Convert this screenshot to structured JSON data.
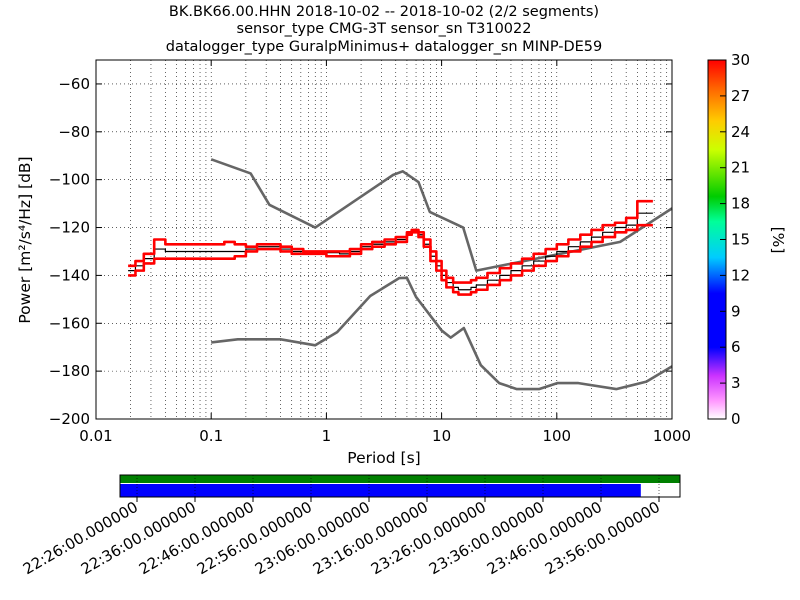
{
  "title_lines": [
    "BK.BK66.00.HHN   2018-10-02 -- 2018-10-02  (2/2 segments)",
    "sensor_type CMG-3T sensor_sn T310022",
    "datalogger_type GuralpMinimus+ datalogger_sn MINP-DE59"
  ],
  "colorbar": {
    "label": "[%]",
    "min": 0,
    "max": 30,
    "ticks": [
      0,
      3,
      6,
      9,
      12,
      15,
      18,
      21,
      24,
      27,
      30
    ],
    "tick_labels": [
      "0",
      "3",
      "6",
      "9",
      "12",
      "15",
      "18",
      "21",
      "24",
      "27",
      "30"
    ]
  },
  "timeline": {
    "tick_labels": [
      "22:26:00.000000",
      "22:36:00.000000",
      "22:46:00.000000",
      "22:56:00.000000",
      "23:06:00.000000",
      "23:16:00.000000",
      "23:26:00.000000",
      "23:36:00.000000",
      "23:46:00.000000",
      "23:56:00.000000"
    ],
    "colors": {
      "data": "#0000ff",
      "gaps": "#008000"
    },
    "data_coverage_fraction": 0.93
  },
  "chart_data": {
    "type": "line",
    "title": "BK.BK66.00.HHN   2018-10-02 -- 2018-10-02  (2/2 segments)",
    "xlabel": "Period [s]",
    "ylabel": "Power [m²/s⁴/Hz] [dB]",
    "xscale": "log",
    "xlim": [
      0.01,
      1000
    ],
    "ylim": [
      -200,
      -50
    ],
    "x_ticks": [
      0.01,
      0.1,
      1,
      10,
      100,
      1000
    ],
    "x_tick_labels": [
      "0.01",
      "0.1",
      "1",
      "10",
      "100",
      "1000"
    ],
    "y_ticks": [
      -200,
      -180,
      -160,
      -140,
      -120,
      -100,
      -80,
      -60
    ],
    "y_tick_labels": [
      "−200",
      "−180",
      "−160",
      "−140",
      "−120",
      "−100",
      "−80",
      "−60"
    ],
    "grid": true,
    "series": [
      {
        "role": "high-noise-model",
        "color": "#666666",
        "x": [
          0.1,
          0.22,
          0.32,
          0.8,
          3.8,
          4.6,
          6.3,
          7.9,
          15.4,
          20,
          354.8,
          1000
        ],
        "y": [
          -91.5,
          -97.4,
          -110.5,
          -120,
          -98,
          -96.5,
          -101,
          -113.5,
          -120,
          -138,
          -126,
          -112
        ]
      },
      {
        "role": "low-noise-model",
        "color": "#666666",
        "x": [
          0.1,
          0.17,
          0.4,
          0.8,
          1.24,
          2.4,
          4.3,
          5,
          6,
          10,
          12,
          15.6,
          21.9,
          31.6,
          45,
          70,
          101,
          154,
          328,
          600,
          1000
        ],
        "y": [
          -168,
          -166.7,
          -166.7,
          -169.2,
          -163.7,
          -148.6,
          -141.1,
          -141,
          -149,
          -163,
          -166,
          -162,
          -177.5,
          -185,
          -187.5,
          -187.5,
          -185,
          -185,
          -187.5,
          -184.4,
          -178
        ]
      },
      {
        "role": "mode",
        "color": "#000000",
        "x": [
          0.019,
          0.022,
          0.026,
          0.032,
          0.04,
          0.05,
          0.063,
          0.08,
          0.1,
          0.13,
          0.16,
          0.2,
          0.25,
          0.32,
          0.4,
          0.5,
          0.63,
          0.8,
          1,
          1.3,
          1.6,
          2,
          2.5,
          3.2,
          4,
          5,
          5.5,
          6.3,
          7,
          8,
          9,
          10,
          11,
          12.6,
          14,
          16,
          18,
          20,
          25,
          32,
          40,
          50,
          63,
          80,
          100,
          126,
          160,
          200,
          250,
          320,
          400,
          500,
          630
        ],
        "y": [
          -138,
          -136,
          -133,
          -129,
          -130,
          -130,
          -130,
          -130,
          -130,
          -130,
          -130,
          -129,
          -128,
          -128,
          -129,
          -130,
          -130,
          -130,
          -130.5,
          -131,
          -130,
          -128,
          -127,
          -126,
          -125,
          -122,
          -121.5,
          -123,
          -127,
          -132,
          -136,
          -140,
          -143,
          -145,
          -146,
          -146,
          -145,
          -144,
          -142,
          -140,
          -138,
          -136,
          -134,
          -132,
          -130,
          -128,
          -126,
          -124,
          -122,
          -120,
          -119,
          -114,
          -114
        ]
      },
      {
        "role": "percentile-upper",
        "color": "#ff0000",
        "x": [
          0.019,
          0.022,
          0.026,
          0.032,
          0.04,
          0.05,
          0.063,
          0.08,
          0.1,
          0.13,
          0.16,
          0.2,
          0.25,
          0.32,
          0.4,
          0.5,
          0.63,
          0.8,
          1,
          1.3,
          1.6,
          2,
          2.5,
          3.2,
          4,
          5,
          5.5,
          6.3,
          7,
          8,
          9,
          10,
          11,
          12.6,
          14,
          16,
          18,
          20,
          25,
          32,
          40,
          50,
          63,
          80,
          100,
          126,
          160,
          200,
          250,
          320,
          400,
          500,
          630
        ],
        "y": [
          -136,
          -134,
          -131,
          -125,
          -127,
          -127,
          -127,
          -127,
          -127,
          -126,
          -127,
          -128,
          -127,
          -127,
          -128,
          -129,
          -130,
          -130,
          -130,
          -130,
          -129,
          -127,
          -126,
          -125,
          -124,
          -122,
          -121,
          -122,
          -125,
          -130,
          -134,
          -138,
          -141,
          -143,
          -143,
          -143,
          -142,
          -141,
          -139,
          -137,
          -135,
          -133,
          -131,
          -129,
          -127,
          -125,
          -123,
          -121,
          -119,
          -118,
          -116,
          -109,
          -109
        ]
      },
      {
        "role": "percentile-lower",
        "color": "#ff0000",
        "x": [
          0.019,
          0.022,
          0.026,
          0.032,
          0.04,
          0.05,
          0.063,
          0.08,
          0.1,
          0.13,
          0.16,
          0.2,
          0.25,
          0.32,
          0.4,
          0.5,
          0.63,
          0.8,
          1,
          1.3,
          1.6,
          2,
          2.5,
          3.2,
          4,
          5,
          5.5,
          6.3,
          7,
          8,
          9,
          10,
          11,
          12.6,
          14,
          16,
          18,
          20,
          25,
          32,
          40,
          50,
          63,
          80,
          100,
          126,
          160,
          200,
          250,
          320,
          400,
          500,
          630
        ],
        "y": [
          -140,
          -138,
          -135,
          -133,
          -133,
          -133,
          -133,
          -133,
          -133,
          -133,
          -132,
          -130,
          -129,
          -129,
          -130,
          -131,
          -131,
          -131,
          -132,
          -132,
          -131,
          -129,
          -128,
          -127,
          -126,
          -123,
          -122,
          -124,
          -128,
          -134,
          -138,
          -142,
          -145,
          -147,
          -148,
          -148,
          -147,
          -146,
          -144,
          -142,
          -140,
          -138,
          -136,
          -134,
          -132,
          -130,
          -128,
          -126,
          -124,
          -122,
          -121,
          -119,
          -119
        ]
      }
    ]
  }
}
